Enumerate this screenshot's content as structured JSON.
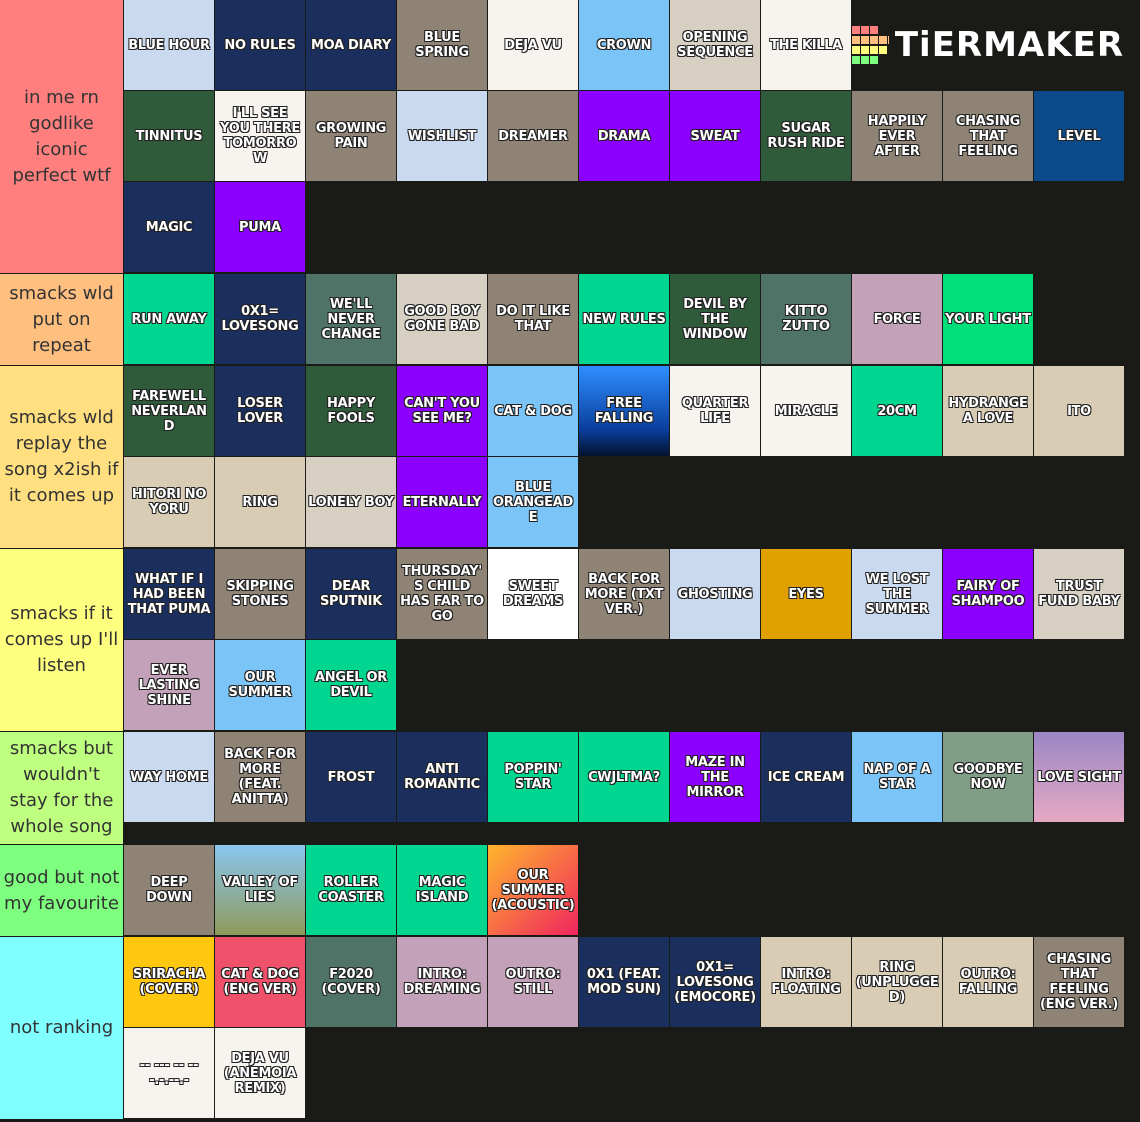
{
  "logo": {
    "text": "TiERMAKER"
  },
  "tiers": [
    {
      "label": "in me rn godlike iconic perfect wtf",
      "color": "#ff7f7f",
      "items": [
        {
          "text": "BLUE HOUR",
          "bg": "#c9d9ef"
        },
        {
          "text": "NO RULES",
          "bg": "#1b2f5e"
        },
        {
          "text": "MOA DIARY",
          "bg": "#1b2f5e"
        },
        {
          "text": "BLUE SPRING",
          "bg": "#8e8374"
        },
        {
          "text": "DEJA VU",
          "bg": "#f7f3ee"
        },
        {
          "text": "CROWN",
          "bg": "#7ac4f7"
        },
        {
          "text": "OPENING SEQUENCE",
          "bg": "#d6cfc2"
        },
        {
          "text": "THE KILLA",
          "bg": "#f7f3ee"
        },
        {
          "text": "TINNITUS",
          "bg": "#2f5b3a"
        },
        {
          "text": "I'LL SEE YOU THERE TOMORROW",
          "bg": "#f7f3ee"
        },
        {
          "text": "GROWING PAIN",
          "bg": "#8e8374"
        },
        {
          "text": "WISHLIST",
          "bg": "#c9d9ef"
        },
        {
          "text": "DREAMER",
          "bg": "#8e8374"
        },
        {
          "text": "DRAMA",
          "bg": "#8b00ff"
        },
        {
          "text": "SWEAT",
          "bg": "#8b00ff"
        },
        {
          "text": "SUGAR RUSH RIDE",
          "bg": "#2f5b3a"
        },
        {
          "text": "HAPPILY EVER AFTER",
          "bg": "#8e8374"
        },
        {
          "text": "CHASING THAT FEELING",
          "bg": "#8e8374"
        },
        {
          "text": "LEVEL",
          "bg": "#0b4a8b"
        },
        {
          "text": "MAGIC",
          "bg": "#1b2f5e"
        },
        {
          "text": "PUMA",
          "bg": "#8b00ff"
        }
      ]
    },
    {
      "label": "smacks wld put on repeat",
      "color": "#ffbf7f",
      "items": [
        {
          "text": "RUN AWAY",
          "bg": "#00d68f"
        },
        {
          "text": "0X1= LOVESONG",
          "bg": "#1b2f5e"
        },
        {
          "text": "WE'LL NEVER CHANGE",
          "bg": "#4f7467"
        },
        {
          "text": "GOOD BOY GONE BAD",
          "bg": "#d6cfc2"
        },
        {
          "text": "DO IT LIKE THAT",
          "bg": "#8e8374"
        },
        {
          "text": "NEW RULES",
          "bg": "#00d68f"
        },
        {
          "text": "DEVIL BY THE WINDOW",
          "bg": "#2f5b3a"
        },
        {
          "text": "KITTO ZUTTO",
          "bg": "#4f7467"
        },
        {
          "text": "FORCE",
          "bg": "#c2a1b9"
        },
        {
          "text": "YOUR LIGHT",
          "bg": "#00e07a"
        }
      ]
    },
    {
      "label": "smacks wld replay the song x2ish if it comes up",
      "color": "#ffdf7f",
      "items": [
        {
          "text": "FAREWELL NEVERLAND",
          "bg": "#2f5b3a"
        },
        {
          "text": "LOSER LOVER",
          "bg": "#1b2f5e"
        },
        {
          "text": "HAPPY FOOLS",
          "bg": "#2f5b3a"
        },
        {
          "text": "CAN'T YOU SEE ME?",
          "bg": "#8b00ff"
        },
        {
          "text": "CAT & DOG",
          "bg": "#7ac4f7"
        },
        {
          "text": "FREE FALLING",
          "bg": "linear-gradient(#2f8fff,#0a3f9e 70%,#02122e)"
        },
        {
          "text": "QUARTER LIFE",
          "bg": "#f7f3ee"
        },
        {
          "text": "MIRACLE",
          "bg": "#f7f3ee"
        },
        {
          "text": "20CM",
          "bg": "#00d68f"
        },
        {
          "text": "HYDRANGEA LOVE",
          "bg": "#d9ccb5"
        },
        {
          "text": "ITO",
          "bg": "#d9ccb5"
        },
        {
          "text": "HITORI NO YORU",
          "bg": "#d9ccb5"
        },
        {
          "text": "RING",
          "bg": "#d9ccb5"
        },
        {
          "text": "LONELY BOY",
          "bg": "#d6cfc2"
        },
        {
          "text": "ETERNALLY",
          "bg": "#8b00ff"
        },
        {
          "text": "BLUE ORANGEADE",
          "bg": "#7ac4f7"
        }
      ]
    },
    {
      "label": "smacks if it comes up I'll listen",
      "color": "#ffff7f",
      "items": [
        {
          "text": "WHAT IF I HAD BEEN THAT PUMA",
          "bg": "#1b2f5e"
        },
        {
          "text": "SKIPPING STONES",
          "bg": "#8e8374"
        },
        {
          "text": "DEAR SPUTNIK",
          "bg": "#1b2f5e"
        },
        {
          "text": "THURSDAY'S CHILD HAS FAR TO GO",
          "bg": "#8e8374"
        },
        {
          "text": "SWEET DREAMS",
          "bg": "#ffffff"
        },
        {
          "text": "BACK FOR MORE (TXT VER.)",
          "bg": "#8e8374"
        },
        {
          "text": "GHOSTING",
          "bg": "#c9d9ef"
        },
        {
          "text": "EYES",
          "bg": "#e0a000"
        },
        {
          "text": "WE LOST THE SUMMER",
          "bg": "#c9d9ef"
        },
        {
          "text": "FAIRY OF SHAMPOO",
          "bg": "#8b00ff"
        },
        {
          "text": "TRUST FUND BABY",
          "bg": "#d6cfc2"
        },
        {
          "text": "EVER LASTING SHINE",
          "bg": "#c2a1b9"
        },
        {
          "text": "OUR SUMMER",
          "bg": "#7ac4f7"
        },
        {
          "text": "ANGEL OR DEVIL",
          "bg": "#00d68f"
        }
      ]
    },
    {
      "label": "smacks but wouldn't stay for the whole song",
      "color": "#bfff7f",
      "items": [
        {
          "text": "WAY HOME",
          "bg": "#c9d9ef"
        },
        {
          "text": "BACK FOR MORE (FEAT. ANITTA)",
          "bg": "#8e8374"
        },
        {
          "text": "FROST",
          "bg": "#1b2f5e"
        },
        {
          "text": "ANTI ROMANTIC",
          "bg": "#1b2f5e"
        },
        {
          "text": "POPPIN' STAR",
          "bg": "#00d68f"
        },
        {
          "text": "CWJLTMA?",
          "bg": "#00d68f"
        },
        {
          "text": "MAZE IN THE MIRROR",
          "bg": "#8b00ff"
        },
        {
          "text": "ICE CREAM",
          "bg": "#1b2f5e"
        },
        {
          "text": "NAP OF A STAR",
          "bg": "#7ac4f7"
        },
        {
          "text": "GOODBYE NOW",
          "bg": "#7f9e85"
        },
        {
          "text": "LOVE SIGHT",
          "bg": "linear-gradient(#9b86c4,#e5a9c4)"
        }
      ]
    },
    {
      "label": "good but not my favourite",
      "color": "#7fff7f",
      "items": [
        {
          "text": "DEEP DOWN",
          "bg": "#8e8374"
        },
        {
          "text": "VALLEY OF LIES",
          "bg": "linear-gradient(#8ac6f0,#8e9a5a)"
        },
        {
          "text": "ROLLER COASTER",
          "bg": "#00d68f"
        },
        {
          "text": "MAGIC ISLAND",
          "bg": "#00d68f"
        },
        {
          "text": "OUR SUMMER (ACOUSTIC)",
          "bg": "linear-gradient(135deg,#ffb52e,#f0245e)"
        }
      ]
    },
    {
      "label": "not ranking",
      "color": "#7fffff",
      "items": [
        {
          "text": "SRIRACHA (COVER)",
          "bg": "#ffc80e"
        },
        {
          "text": "CAT & DOG (ENG VER)",
          "bg": "#f0516a"
        },
        {
          "text": "F2020 (COVER)",
          "bg": "#4f7467"
        },
        {
          "text": "INTRO: DREAMING",
          "bg": "#c2a1b9"
        },
        {
          "text": "OUTRO: STILL",
          "bg": "#c2a1b9"
        },
        {
          "text": "0X1 (FEAT. MOD SUN)",
          "bg": "#1b2f5e"
        },
        {
          "text": "0X1= LOVESONG (EMOCORE)",
          "bg": "#1b2f5e"
        },
        {
          "text": "INTRO: FLOATING",
          "bg": "#d9ccb5"
        },
        {
          "text": "RING (UNPLUGGED)",
          "bg": "#d9ccb5"
        },
        {
          "text": "OUTRO: FALLING",
          "bg": "#d9ccb5"
        },
        {
          "text": "CHASING THAT FEELING (ENG VER.)",
          "bg": "#8e8374"
        },
        {
          "text": "-- --- -- -- -.-.--.-",
          "bg": "#f7f3ee"
        },
        {
          "text": "DEJA VU (ANEMOIA REMIX)",
          "bg": "#f7f3ee"
        }
      ]
    }
  ]
}
